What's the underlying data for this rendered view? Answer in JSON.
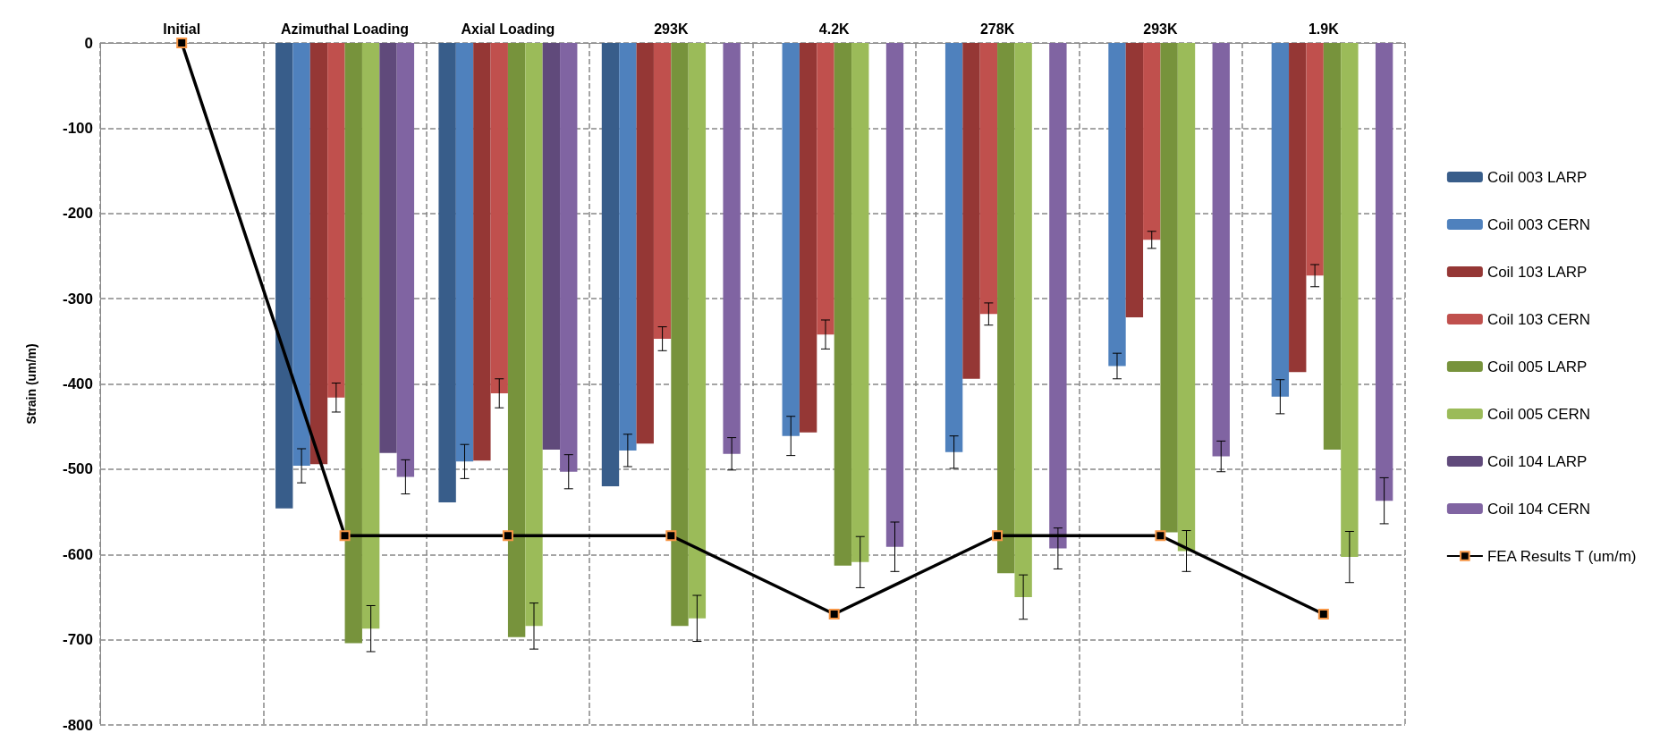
{
  "chart_data": {
    "type": "bar",
    "ylabel": "Strain (um/m)",
    "categories": [
      "Initial",
      "Azimuthal Loading",
      "Axial Loading",
      "293K",
      "4.2K",
      "278K",
      "293K",
      "1.9K"
    ],
    "ylim": [
      -800,
      0
    ],
    "yticks": [
      -800,
      -700,
      -600,
      -500,
      -400,
      -300,
      -200,
      -100,
      0
    ],
    "grid": true,
    "legend": "right",
    "series": [
      {
        "name": "Coil 003 LARP",
        "color": "#385d8a",
        "values": [
          null,
          -546,
          -539,
          -520,
          null,
          null,
          null,
          null
        ]
      },
      {
        "name": "Coil 003 CERN",
        "color": "#4f81bd",
        "values": [
          null,
          -496,
          -491,
          -478,
          -461,
          -480,
          -379,
          -415
        ],
        "errors": [
          null,
          20,
          20,
          19,
          23,
          19,
          15,
          20
        ]
      },
      {
        "name": "Coil 103 LARP",
        "color": "#953735",
        "values": [
          null,
          -494,
          -490,
          -470,
          -457,
          -394,
          -322,
          -386
        ]
      },
      {
        "name": "Coil 103 CERN",
        "color": "#c0504d",
        "values": [
          null,
          -416,
          -411,
          -347,
          -342,
          -318,
          -231,
          -273
        ],
        "errors": [
          null,
          17,
          17,
          14,
          17,
          13,
          10,
          13
        ]
      },
      {
        "name": "Coil 005 LARP",
        "color": "#77933c",
        "values": [
          null,
          -704,
          -697,
          -684,
          -613,
          -622,
          -574,
          -477
        ]
      },
      {
        "name": "Coil 005 CERN",
        "color": "#9bbb59",
        "values": [
          null,
          -687,
          -684,
          -675,
          -609,
          -650,
          -596,
          -603
        ],
        "errors": [
          null,
          27,
          27,
          27,
          30,
          26,
          24,
          30
        ]
      },
      {
        "name": "Coil 104 LARP",
        "color": "#604a7b",
        "values": [
          null,
          -481,
          -477,
          null,
          null,
          null,
          null,
          null
        ]
      },
      {
        "name": "Coil 104 CERN",
        "color": "#8064a2",
        "values": [
          null,
          -509,
          -503,
          -482,
          -591,
          -593,
          -485,
          -537
        ],
        "errors": [
          null,
          20,
          20,
          19,
          29,
          24,
          18,
          27
        ]
      },
      {
        "name": "FEA Results T (um/m)",
        "type": "line",
        "color": "#000000",
        "marker": "square",
        "values": [
          0,
          -578,
          -578,
          -578,
          -670,
          -578,
          -578,
          -670
        ]
      }
    ]
  }
}
